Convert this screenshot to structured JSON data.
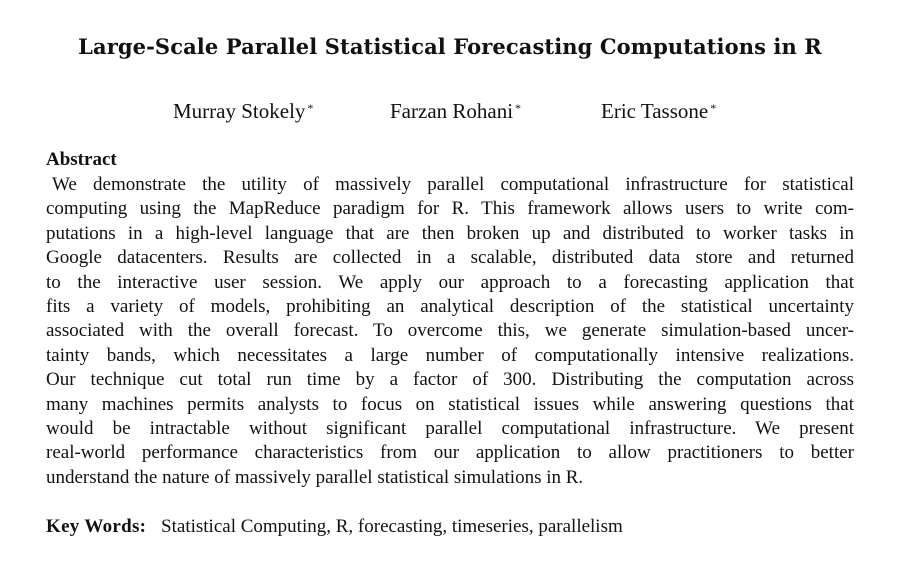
{
  "paper": {
    "title": "Large-Scale Parallel Statistical Forecasting Computations in R",
    "authors": [
      {
        "name": "Murray Stokely",
        "mark": "*"
      },
      {
        "name": "Farzan Rohani",
        "mark": "*"
      },
      {
        "name": "Eric Tassone",
        "mark": "*"
      }
    ],
    "abstract": {
      "heading": "Abstract",
      "lines": [
        "We demonstrate the utility of massively parallel computational infrastructure for statistical",
        "computing using the MapReduce paradigm for R. This framework allows users to write com-",
        "putations in a high-level language that are then broken up and distributed to worker tasks in",
        "Google datacenters. Results are collected in a scalable, distributed data store and returned",
        "to the interactive user session.  We apply our approach to a forecasting application that",
        "fits a variety of models, prohibiting an analytical description of the statistical uncertainty",
        "associated with the overall forecast. To overcome this, we generate simulation-based uncer-",
        "tainty bands, which necessitates a large number of computationally intensive realizations.",
        "Our technique cut total run time by a factor of 300. Distributing the computation across",
        "many machines permits analysts to focus on statistical issues while answering questions that",
        "would be intractable without significant parallel computational infrastructure. We present",
        "real-world performance characteristics from our application to allow practitioners to better",
        "understand the nature of massively parallel statistical simulations in R."
      ]
    },
    "keywords": {
      "label": "Key Words:",
      "text": "Statistical Computing, R, forecasting, timeseries, parallelism"
    }
  }
}
